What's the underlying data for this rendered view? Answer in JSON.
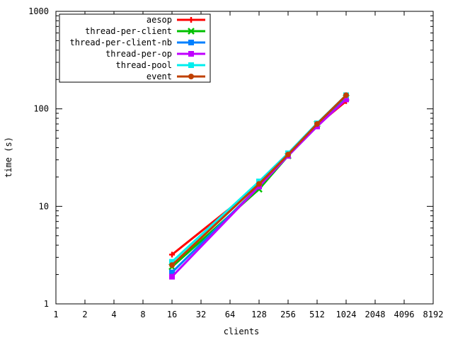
{
  "chart_data": {
    "type": "line",
    "title": "",
    "xlabel": "clients",
    "ylabel": "time (s)",
    "x_scale": "log2",
    "y_scale": "log10",
    "xlim": [
      1,
      8192
    ],
    "ylim": [
      1,
      1000
    ],
    "x_ticks": [
      "1",
      "2",
      "4",
      "8",
      "16",
      "32",
      "64",
      "128",
      "256",
      "512",
      "1024",
      "2048",
      "4096",
      "8192"
    ],
    "y_ticks": [
      "1",
      "10",
      "100",
      "1000"
    ],
    "grid": false,
    "legend_position": "top-left",
    "x": [
      16,
      128,
      256,
      512,
      1024
    ],
    "series": [
      {
        "name": "aesop",
        "color": "#ff0000",
        "marker": "plus",
        "values": [
          3.2,
          16.5,
          33,
          68,
          120
        ]
      },
      {
        "name": "thread-per-client",
        "color": "#00c000",
        "marker": "cross",
        "values": [
          2.4,
          15,
          33,
          70,
          130
        ]
      },
      {
        "name": "thread-per-client-nb",
        "color": "#0080ff",
        "marker": "square",
        "values": [
          2.1,
          16,
          33,
          66,
          128
        ]
      },
      {
        "name": "thread-per-op",
        "color": "#c000ff",
        "marker": "square",
        "values": [
          1.9,
          16,
          33,
          66,
          125
        ]
      },
      {
        "name": "thread-pool",
        "color": "#00eeee",
        "marker": "square",
        "values": [
          2.7,
          18,
          35,
          71,
          138
        ]
      },
      {
        "name": "event",
        "color": "#c04000",
        "marker": "circle",
        "values": [
          2.5,
          17,
          34,
          70,
          138
        ]
      }
    ]
  }
}
